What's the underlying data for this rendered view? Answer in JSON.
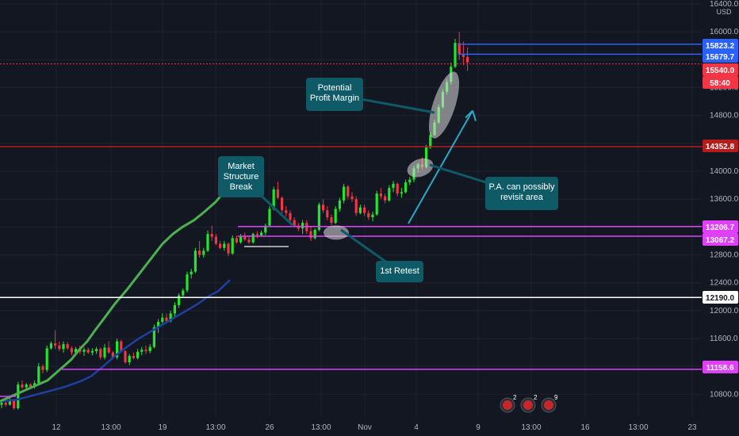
{
  "axis": {
    "currency": "USD",
    "y_ticks": [
      10800,
      11200,
      11600,
      12000,
      12400,
      12800,
      13200,
      13600,
      14000,
      14400,
      14800,
      15200,
      15600,
      16000,
      16400
    ],
    "x_ticks": [
      "12",
      "13:00",
      "19",
      "13:00",
      "26",
      "13:00",
      "Nov",
      "4",
      "9",
      "13:00",
      "16",
      "13:00",
      "23"
    ]
  },
  "price_labels": [
    {
      "text": "15823.2",
      "value": 15823.2,
      "color": "#2962ff",
      "text_color": "#ffffff"
    },
    {
      "text": "15679.7",
      "value": 15679.7,
      "color": "#2962ff",
      "text_color": "#ffffff"
    },
    {
      "text": "15540.0",
      "value": 15540.0,
      "color": "#f23645",
      "text_color": "#ffffff"
    },
    {
      "text": "58:40",
      "value": 15420,
      "color": "#f23645",
      "text_color": "#ffffff"
    },
    {
      "text": "14352.8",
      "value": 14352.8,
      "color": "#b71c1c",
      "text_color": "#ffffff"
    },
    {
      "text": "13206.7",
      "value": 13206.7,
      "color": "#e040fb",
      "text_color": "#ffffff"
    },
    {
      "text": "13067.2",
      "value": 13067.2,
      "color": "#e040fb",
      "text_color": "#ffffff"
    },
    {
      "text": "12190.0",
      "value": 12190.0,
      "color": "#ffffff",
      "text_color": "#131722"
    },
    {
      "text": "11158.6",
      "value": 11158.6,
      "color": "#e040fb",
      "text_color": "#ffffff"
    }
  ],
  "annotations": {
    "market_structure": [
      "Market",
      "Structure",
      "Break"
    ],
    "first_retest": [
      "1st Retest"
    ],
    "profit_margin": [
      "Potential",
      "Profit Margin"
    ],
    "pa_revisit": [
      "P.A. can possibly",
      "revisit area"
    ]
  },
  "events": [
    "2",
    "2",
    "9"
  ],
  "chart_data": {
    "type": "candlestick",
    "y_range": [
      10600,
      16400
    ],
    "candles": [
      [
        10650,
        10700,
        10600,
        10680
      ],
      [
        10680,
        10720,
        10620,
        10650
      ],
      [
        10650,
        10760,
        10640,
        10720
      ],
      [
        10720,
        10730,
        10580,
        10600
      ],
      [
        10600,
        10980,
        10580,
        10940
      ],
      [
        10940,
        11000,
        10880,
        10900
      ],
      [
        10900,
        10960,
        10860,
        10940
      ],
      [
        10940,
        10960,
        10880,
        10910
      ],
      [
        10910,
        11000,
        10880,
        10960
      ],
      [
        10960,
        11250,
        10940,
        11200
      ],
      [
        11200,
        11230,
        11100,
        11150
      ],
      [
        11150,
        11500,
        11120,
        11460
      ],
      [
        11460,
        11560,
        11440,
        11530
      ],
      [
        11530,
        11720,
        11450,
        11500
      ],
      [
        11500,
        11560,
        11420,
        11450
      ],
      [
        11450,
        11560,
        11400,
        11520
      ],
      [
        11520,
        11550,
        11440,
        11460
      ],
      [
        11460,
        11490,
        11360,
        11400
      ],
      [
        11400,
        11480,
        11370,
        11450
      ],
      [
        11450,
        11500,
        11380,
        11410
      ],
      [
        11410,
        11470,
        11350,
        11440
      ],
      [
        11440,
        11470,
        11380,
        11400
      ],
      [
        11400,
        11460,
        11360,
        11420
      ],
      [
        11420,
        11480,
        11380,
        11450
      ],
      [
        11450,
        11470,
        11300,
        11330
      ],
      [
        11330,
        11520,
        11300,
        11470
      ],
      [
        11470,
        11560,
        11380,
        11400
      ],
      [
        11400,
        11420,
        11300,
        11330
      ],
      [
        11330,
        11600,
        11300,
        11560
      ],
      [
        11560,
        11580,
        11400,
        11420
      ],
      [
        11420,
        11430,
        11240,
        11260
      ],
      [
        11260,
        11380,
        11220,
        11350
      ],
      [
        11350,
        11400,
        11300,
        11320
      ],
      [
        11320,
        11450,
        11300,
        11410
      ],
      [
        11410,
        11480,
        11360,
        11440
      ],
      [
        11440,
        11500,
        11380,
        11420
      ],
      [
        11420,
        11520,
        11390,
        11480
      ],
      [
        11480,
        11800,
        11460,
        11760
      ],
      [
        11760,
        11880,
        11680,
        11840
      ],
      [
        11840,
        11960,
        11800,
        11900
      ],
      [
        11900,
        11960,
        11820,
        11850
      ],
      [
        11850,
        12000,
        11830,
        11960
      ],
      [
        11960,
        12120,
        11900,
        12080
      ],
      [
        12080,
        12250,
        12040,
        12220
      ],
      [
        12220,
        12320,
        12200,
        12290
      ],
      [
        12290,
        12560,
        12260,
        12520
      ],
      [
        12520,
        12600,
        12460,
        12560
      ],
      [
        12560,
        12900,
        12540,
        12860
      ],
      [
        12860,
        13000,
        12760,
        12800
      ],
      [
        12800,
        12900,
        12760,
        12860
      ],
      [
        12860,
        13150,
        12840,
        13100
      ],
      [
        13100,
        13220,
        13000,
        13060
      ],
      [
        13060,
        13100,
        12940,
        12960
      ],
      [
        12960,
        13000,
        12880,
        12900
      ],
      [
        12900,
        13000,
        12860,
        12960
      ],
      [
        12960,
        12980,
        12780,
        12820
      ],
      [
        12820,
        13080,
        12800,
        13040
      ],
      [
        13040,
        13080,
        12960,
        12980
      ],
      [
        12980,
        13100,
        12960,
        13060
      ],
      [
        13060,
        13120,
        13000,
        13020
      ],
      [
        13020,
        13080,
        12960,
        12980
      ],
      [
        12980,
        13120,
        12960,
        13100
      ],
      [
        13100,
        13140,
        13040,
        13080
      ],
      [
        13080,
        13150,
        13060,
        13120
      ],
      [
        13120,
        13250,
        13080,
        13220
      ],
      [
        13220,
        13500,
        13200,
        13460
      ],
      [
        13460,
        13780,
        13440,
        13740
      ],
      [
        13740,
        13850,
        13600,
        13620
      ],
      [
        13620,
        13640,
        13400,
        13440
      ],
      [
        13440,
        13500,
        13350,
        13400
      ],
      [
        13400,
        13440,
        13260,
        13300
      ],
      [
        13300,
        13340,
        13200,
        13220
      ],
      [
        13220,
        13260,
        13140,
        13180
      ],
      [
        13180,
        13300,
        13100,
        13260
      ],
      [
        13260,
        13300,
        13100,
        13140
      ],
      [
        13140,
        13200,
        13000,
        13040
      ],
      [
        13040,
        13180,
        13020,
        13160
      ],
      [
        13160,
        13550,
        13140,
        13520
      ],
      [
        13520,
        13600,
        13400,
        13440
      ],
      [
        13440,
        13500,
        13300,
        13340
      ],
      [
        13340,
        13380,
        13220,
        13260
      ],
      [
        13260,
        13500,
        13240,
        13460
      ],
      [
        13460,
        13620,
        13420,
        13580
      ],
      [
        13580,
        13820,
        13540,
        13780
      ],
      [
        13780,
        13800,
        13600,
        13640
      ],
      [
        13640,
        13700,
        13560,
        13600
      ],
      [
        13600,
        13640,
        13360,
        13400
      ],
      [
        13400,
        13520,
        13380,
        13480
      ],
      [
        13480,
        13520,
        13360,
        13400
      ],
      [
        13400,
        13440,
        13300,
        13340
      ],
      [
        13340,
        13420,
        13280,
        13380
      ],
      [
        13380,
        13720,
        13360,
        13680
      ],
      [
        13680,
        13760,
        13600,
        13640
      ],
      [
        13640,
        13680,
        13540,
        13580
      ],
      [
        13580,
        13800,
        13560,
        13760
      ],
      [
        13760,
        13860,
        13700,
        13820
      ],
      [
        13820,
        13840,
        13640,
        13680
      ],
      [
        13680,
        13760,
        13620,
        13700
      ],
      [
        13700,
        13880,
        13680,
        13840
      ],
      [
        13840,
        13920,
        13800,
        13880
      ],
      [
        13880,
        14080,
        13840,
        14040
      ],
      [
        14040,
        14120,
        13980,
        14100
      ],
      [
        14100,
        14200,
        14020,
        14060
      ],
      [
        14060,
        14380,
        14040,
        14340
      ],
      [
        14340,
        14560,
        14320,
        14520
      ],
      [
        14520,
        14740,
        14500,
        14700
      ],
      [
        14700,
        14960,
        14680,
        14920
      ],
      [
        14920,
        15180,
        14900,
        15140
      ],
      [
        15140,
        15320,
        15100,
        15280
      ],
      [
        15280,
        15560,
        15240,
        15500
      ],
      [
        15500,
        15900,
        15480,
        15840
      ],
      [
        15840,
        16000,
        15600,
        15680
      ],
      [
        15680,
        15860,
        15520,
        15640
      ],
      [
        15640,
        15780,
        15440,
        15560
      ]
    ],
    "ma_green": [
      [
        0,
        10700
      ],
      [
        20,
        10800
      ],
      [
        40,
        10900
      ],
      [
        60,
        11000
      ],
      [
        70,
        11100
      ],
      [
        80,
        11200
      ],
      [
        90,
        11300
      ],
      [
        100,
        11440
      ],
      [
        110,
        11560
      ],
      [
        120,
        11720
      ],
      [
        132,
        11900
      ],
      [
        145,
        12100
      ],
      [
        160,
        12300
      ],
      [
        175,
        12520
      ],
      [
        190,
        12740
      ],
      [
        205,
        12960
      ],
      [
        218,
        13100
      ],
      [
        230,
        13200
      ],
      [
        245,
        13300
      ],
      [
        258,
        13420
      ],
      [
        272,
        13560
      ],
      [
        284,
        13720
      ],
      [
        294,
        13900
      ]
    ],
    "ma_blue": [
      [
        0,
        10700
      ],
      [
        20,
        10720
      ],
      [
        40,
        10780
      ],
      [
        60,
        10840
      ],
      [
        80,
        10900
      ],
      [
        100,
        10980
      ],
      [
        115,
        11060
      ],
      [
        130,
        11200
      ],
      [
        145,
        11350
      ],
      [
        160,
        11480
      ],
      [
        175,
        11600
      ],
      [
        190,
        11700
      ],
      [
        205,
        11800
      ],
      [
        220,
        11900
      ],
      [
        235,
        12000
      ],
      [
        250,
        12100
      ],
      [
        262,
        12200
      ],
      [
        275,
        12280
      ],
      [
        290,
        12440
      ]
    ]
  }
}
